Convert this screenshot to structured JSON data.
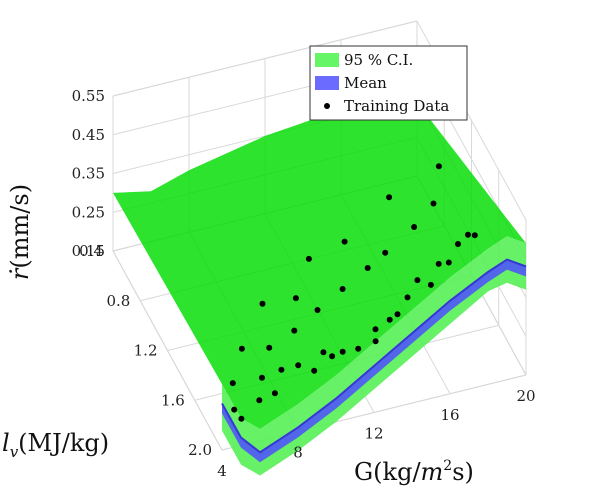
{
  "chart_data": {
    "type": "surface3d",
    "x_axis": {
      "label_parts": [
        "G(kg/",
        "m",
        "2",
        "s)"
      ],
      "ticks": [
        4,
        8,
        12,
        16,
        20
      ],
      "range": [
        4,
        20
      ]
    },
    "y_axis": {
      "label_parts": [
        "l",
        "v",
        "(MJ/kg)"
      ],
      "ticks": [
        0.4,
        0.8,
        1.2,
        1.6,
        2.0
      ],
      "tick_labels": [
        "0.4",
        "0.8",
        "1.2",
        "1.6",
        "2.0"
      ],
      "range": [
        0.4,
        2.0
      ]
    },
    "z_axis": {
      "label_parts": [
        "ṙ",
        "(mm/s)"
      ],
      "ticks": [
        0.15,
        0.25,
        0.35,
        0.45,
        0.55
      ],
      "tick_labels": [
        "0.15",
        "0.25",
        "0.35",
        "0.45",
        "0.55"
      ],
      "range": [
        0.15,
        0.55
      ]
    },
    "legend": {
      "position": "top-right",
      "entries": [
        {
          "label": "95 % C.I.",
          "color": "#00ee00",
          "marker": "patch"
        },
        {
          "label": "Mean",
          "color": "#6b6bff",
          "marker": "patch"
        },
        {
          "label": "Training Data",
          "color": "#000000",
          "marker": "dot"
        }
      ]
    },
    "series": [
      {
        "name": "95 % C.I.",
        "kind": "band",
        "color": "#00dd00",
        "lower_at_ymax": [
          [
            4,
            0.2
          ],
          [
            5,
            0.1
          ],
          [
            6,
            0.06
          ],
          [
            8,
            0.1
          ],
          [
            10,
            0.15
          ],
          [
            12,
            0.21
          ],
          [
            14,
            0.27
          ],
          [
            16,
            0.33
          ],
          [
            18,
            0.39
          ],
          [
            19,
            0.4
          ],
          [
            20,
            0.37
          ]
        ],
        "upper_at_ymax": [
          [
            4,
            0.32
          ],
          [
            5,
            0.22
          ],
          [
            6,
            0.18
          ],
          [
            8,
            0.22
          ],
          [
            10,
            0.27
          ],
          [
            12,
            0.33
          ],
          [
            14,
            0.39
          ],
          [
            16,
            0.45
          ],
          [
            18,
            0.5
          ],
          [
            19,
            0.52
          ],
          [
            20,
            0.49
          ]
        ],
        "far_edge_upper": [
          [
            4,
            0.3
          ],
          [
            6,
            0.28
          ],
          [
            8,
            0.31
          ],
          [
            10,
            0.33
          ],
          [
            12,
            0.35
          ],
          [
            14,
            0.36
          ],
          [
            16,
            0.37
          ],
          [
            18,
            0.35
          ],
          [
            20,
            0.34
          ]
        ],
        "far_edge_lower": [
          [
            4,
            0.24
          ],
          [
            6,
            0.22
          ],
          [
            8,
            0.25
          ],
          [
            10,
            0.26
          ],
          [
            12,
            0.28
          ],
          [
            14,
            0.29
          ],
          [
            16,
            0.3
          ],
          [
            18,
            0.28
          ],
          [
            20,
            0.27
          ]
        ]
      },
      {
        "name": "Mean",
        "kind": "line-band",
        "color": "#4d4dff",
        "points_at_ymax": [
          [
            4,
            0.27
          ],
          [
            5,
            0.17
          ],
          [
            6,
            0.12
          ],
          [
            8,
            0.16
          ],
          [
            10,
            0.21
          ],
          [
            12,
            0.27
          ],
          [
            14,
            0.33
          ],
          [
            16,
            0.39
          ],
          [
            18,
            0.44
          ],
          [
            19,
            0.46
          ],
          [
            20,
            0.43
          ]
        ]
      },
      {
        "name": "Training Data",
        "kind": "scatter",
        "color": "#000000",
        "points": [
          [
            5.2,
            1.95,
            0.2
          ],
          [
            5.0,
            1.9,
            0.21
          ],
          [
            6.5,
            1.85,
            0.2
          ],
          [
            7.0,
            1.75,
            0.22
          ],
          [
            7.5,
            1.8,
            0.19
          ],
          [
            8.2,
            1.7,
            0.21
          ],
          [
            8.8,
            1.78,
            0.24
          ],
          [
            9.5,
            1.82,
            0.23
          ],
          [
            10.2,
            1.76,
            0.25
          ],
          [
            10.8,
            1.72,
            0.22
          ],
          [
            11.5,
            1.68,
            0.21
          ],
          [
            12.1,
            1.74,
            0.23
          ],
          [
            12.8,
            1.8,
            0.26
          ],
          [
            13.3,
            1.66,
            0.24
          ],
          [
            13.9,
            1.7,
            0.27
          ],
          [
            14.6,
            1.62,
            0.25
          ],
          [
            15.2,
            1.6,
            0.28
          ],
          [
            15.9,
            1.55,
            0.3
          ],
          [
            16.5,
            1.58,
            0.29
          ],
          [
            17.2,
            1.5,
            0.31
          ],
          [
            17.8,
            1.48,
            0.3
          ],
          [
            18.5,
            1.42,
            0.32
          ],
          [
            19.1,
            1.4,
            0.33
          ],
          [
            19.6,
            1.36,
            0.31
          ],
          [
            18.0,
            1.2,
            0.36
          ],
          [
            16.8,
            1.25,
            0.33
          ],
          [
            15.1,
            1.3,
            0.3
          ],
          [
            14.0,
            1.35,
            0.29
          ],
          [
            12.5,
            1.4,
            0.27
          ],
          [
            11.0,
            1.45,
            0.25
          ],
          [
            9.6,
            1.5,
            0.23
          ],
          [
            8.1,
            1.55,
            0.22
          ],
          [
            7.2,
            1.4,
            0.18
          ],
          [
            6.0,
            1.6,
            0.17
          ],
          [
            10.4,
            1.3,
            0.24
          ],
          [
            13.5,
            1.15,
            0.3
          ],
          [
            16.2,
            1.05,
            0.35
          ],
          [
            19.0,
            1.0,
            0.38
          ],
          [
            11.8,
            1.1,
            0.26
          ],
          [
            9.0,
            1.2,
            0.21
          ]
        ]
      }
    ]
  }
}
